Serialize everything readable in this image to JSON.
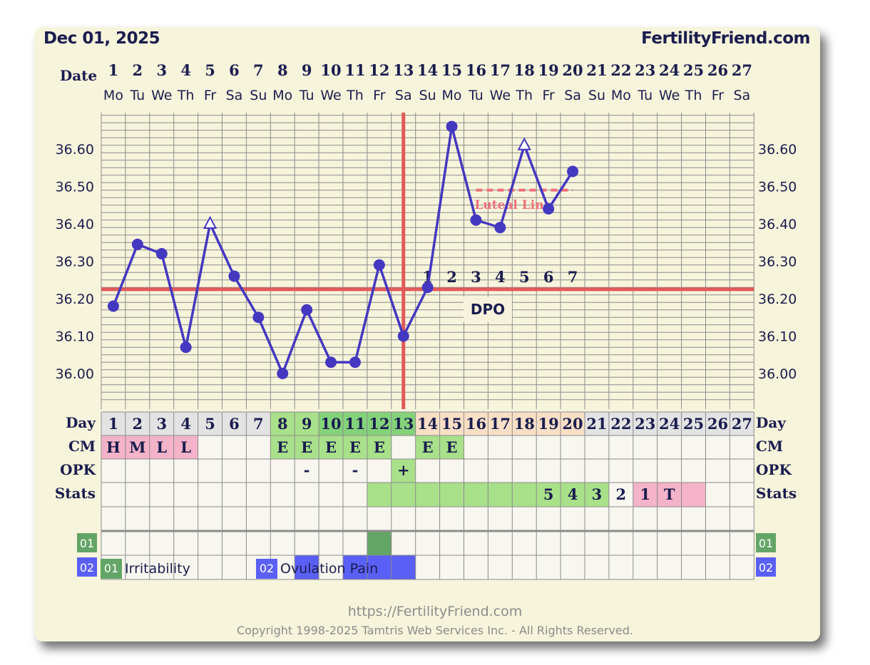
{
  "header": {
    "date": "Dec 01, 2025",
    "site": "FertilityFriend.com"
  },
  "footer": {
    "url": "https://FertilityFriend.com",
    "copyright": "Copyright 1998-2025 Tamtris Web Services Inc. - All Rights Reserved."
  },
  "colors": {
    "card_bg": "#f7f4dc",
    "text": "#1a1d4e",
    "grid": "#8c8c8c",
    "line": "#4438c0",
    "coverline": "#e05a5a",
    "luteal": "#f0707a",
    "follicular_header": "#e3e3e3",
    "fertile": "#a9e08a",
    "fertile_header": "#84d27a",
    "luteal_header": "#f9dfc6",
    "cm_pink": "#f4b3c8",
    "green_box": "#63a566",
    "blue_box": "#5a5ff5",
    "cell": "#f7f6ef"
  },
  "chart_data": {
    "type": "line",
    "title": "",
    "date_row_label": "Date",
    "day_numbers": [
      1,
      2,
      3,
      4,
      5,
      6,
      7,
      8,
      9,
      10,
      11,
      12,
      13,
      14,
      15,
      16,
      17,
      18,
      19,
      20,
      21,
      22,
      23,
      24,
      25,
      26,
      27
    ],
    "weekdays": [
      "Mo",
      "Tu",
      "We",
      "Th",
      "Fr",
      "Sa",
      "Su",
      "Mo",
      "Tu",
      "We",
      "Th",
      "Fr",
      "Sa",
      "Su",
      "Mo",
      "Tu",
      "We",
      "Th",
      "Fr",
      "Sa",
      "Su",
      "Mo",
      "Tu",
      "We",
      "Th",
      "Fr",
      "Sa"
    ],
    "y_ticks": [
      "36.00",
      "36.10",
      "36.20",
      "36.30",
      "36.40",
      "36.50",
      "36.60"
    ],
    "ylim": [
      35.92,
      36.71
    ],
    "temperatures": [
      {
        "day": 1,
        "value": 36.18,
        "marker": "dot"
      },
      {
        "day": 2,
        "value": 36.345,
        "marker": "dot"
      },
      {
        "day": 3,
        "value": 36.32,
        "marker": "dot"
      },
      {
        "day": 4,
        "value": 36.07,
        "marker": "dot"
      },
      {
        "day": 5,
        "value": 36.4,
        "marker": "triangle"
      },
      {
        "day": 6,
        "value": 36.26,
        "marker": "dot"
      },
      {
        "day": 7,
        "value": 36.15,
        "marker": "dot"
      },
      {
        "day": 8,
        "value": 36.0,
        "marker": "dot"
      },
      {
        "day": 9,
        "value": 36.17,
        "marker": "dot"
      },
      {
        "day": 10,
        "value": 36.03,
        "marker": "dot"
      },
      {
        "day": 11,
        "value": 36.03,
        "marker": "dot"
      },
      {
        "day": 12,
        "value": 36.29,
        "marker": "dot"
      },
      {
        "day": 13,
        "value": 36.1,
        "marker": "dot"
      },
      {
        "day": 14,
        "value": 36.23,
        "marker": "dot"
      },
      {
        "day": 15,
        "value": 36.66,
        "marker": "dot"
      },
      {
        "day": 16,
        "value": 36.41,
        "marker": "dot"
      },
      {
        "day": 17,
        "value": 36.39,
        "marker": "dot"
      },
      {
        "day": 18,
        "value": 36.61,
        "marker": "triangle"
      },
      {
        "day": 19,
        "value": 36.44,
        "marker": "dot"
      },
      {
        "day": 20,
        "value": 36.54,
        "marker": "dot"
      }
    ],
    "coverline": 36.225,
    "ovulation_day": 13,
    "luteal_line": {
      "value": 36.49,
      "from_day": 16,
      "to_day": 20,
      "label": "Luteal Line"
    },
    "dpo": {
      "label": "DPO",
      "numbers": [
        "1",
        "2",
        "3",
        "4",
        "5",
        "6",
        "7"
      ],
      "start_day": 14
    }
  },
  "table": {
    "row_labels": {
      "day": "Day",
      "cm": "CM",
      "opk": "OPK",
      "stats": "Stats"
    },
    "day_phase": [
      "f",
      "f",
      "f",
      "f",
      "f",
      "f",
      "f",
      "g",
      "g",
      "G",
      "G",
      "G",
      "G",
      "l",
      "l",
      "l",
      "l",
      "l",
      "l",
      "l",
      "f",
      "f",
      "f",
      "f",
      "f",
      "f",
      "f"
    ],
    "cm": [
      {
        "day": 1,
        "text": "H",
        "color": "pink"
      },
      {
        "day": 2,
        "text": "M",
        "color": "pink"
      },
      {
        "day": 3,
        "text": "L",
        "color": "pink"
      },
      {
        "day": 4,
        "text": "L",
        "color": "pink"
      },
      {
        "day": 8,
        "text": "E",
        "color": "green"
      },
      {
        "day": 9,
        "text": "E",
        "color": "green"
      },
      {
        "day": 10,
        "text": "E",
        "color": "green"
      },
      {
        "day": 11,
        "text": "E",
        "color": "green"
      },
      {
        "day": 12,
        "text": "E",
        "color": "green"
      },
      {
        "day": 14,
        "text": "E",
        "color": "green"
      },
      {
        "day": 15,
        "text": "E",
        "color": "green"
      }
    ],
    "opk": [
      {
        "day": 9,
        "text": "-"
      },
      {
        "day": 11,
        "text": "-"
      },
      {
        "day": 13,
        "text": "+",
        "color": "green"
      }
    ],
    "stats": [
      {
        "day": 12,
        "text": "",
        "color": "green"
      },
      {
        "day": 13,
        "text": "",
        "color": "green"
      },
      {
        "day": 14,
        "text": "",
        "color": "green"
      },
      {
        "day": 15,
        "text": "",
        "color": "green"
      },
      {
        "day": 16,
        "text": "",
        "color": "green"
      },
      {
        "day": 17,
        "text": "",
        "color": "green"
      },
      {
        "day": 18,
        "text": "",
        "color": "green"
      },
      {
        "day": 19,
        "text": "5",
        "color": "green"
      },
      {
        "day": 20,
        "text": "4",
        "color": "green"
      },
      {
        "day": 21,
        "text": "3",
        "color": "green"
      },
      {
        "day": 22,
        "text": "2",
        "color": "none"
      },
      {
        "day": 23,
        "text": "1",
        "color": "pink"
      },
      {
        "day": 24,
        "text": "T",
        "color": "pink"
      },
      {
        "day": 25,
        "text": "",
        "color": "pink"
      }
    ],
    "symptoms": [
      {
        "code": "01",
        "name": "Irritability",
        "color": "green",
        "days": [
          12
        ]
      },
      {
        "code": "02",
        "name": "Ovulation Pain",
        "color": "blue",
        "days": [
          9,
          11,
          12,
          13
        ]
      }
    ]
  }
}
